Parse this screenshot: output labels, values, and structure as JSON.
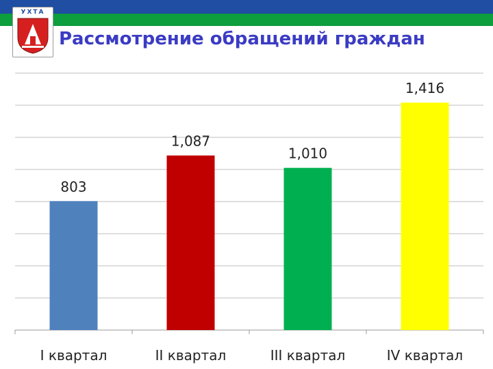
{
  "header": {
    "crest_label": "УХТА",
    "title": "Рассмотрение обращений граждан"
  },
  "colors": {
    "band_top": "#1f4ea3",
    "band_mid": "#0d9e3e",
    "title": "#3b3bc4",
    "grid": "#bfbfbf"
  },
  "chart_data": {
    "type": "bar",
    "categories": [
      "I квартал",
      "II квартал",
      "III квартал",
      "IV квартал"
    ],
    "values": [
      803,
      1087,
      1010,
      1416
    ],
    "data_labels": [
      "803",
      "1,087",
      "1,010",
      "1,416"
    ],
    "colors": [
      "#4f81bd",
      "#c00000",
      "#00b050",
      "#ffff00"
    ],
    "ylim": [
      0,
      1600
    ],
    "gridlines": true,
    "axis_labels_visible": false,
    "legend": false
  }
}
